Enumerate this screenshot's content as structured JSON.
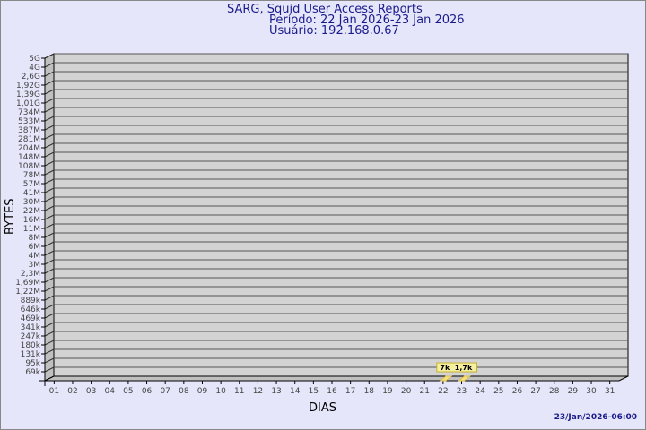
{
  "chart_data": {
    "type": "bar",
    "title": "SARG, Squid User Access Reports",
    "subtitle_period": "Período: 22 Jan 2026-23 Jan 2026",
    "subtitle_user": "Usuário: 192.168.0.67",
    "xlabel": "DIAS",
    "ylabel": "BYTES",
    "y_scale": "log",
    "y_ticks": [
      "5G",
      "4G",
      "2,6G",
      "1,92G",
      "1,39G",
      "1,01G",
      "734M",
      "533M",
      "387M",
      "281M",
      "204M",
      "148M",
      "108M",
      "78M",
      "57M",
      "41M",
      "30M",
      "22M",
      "16M",
      "11M",
      "8M",
      "6M",
      "4M",
      "3M",
      "2,3M",
      "1,69M",
      "1,22M",
      "889k",
      "646k",
      "469k",
      "341k",
      "247k",
      "180k",
      "131k",
      "95k",
      "69k"
    ],
    "categories": [
      "01",
      "02",
      "03",
      "04",
      "05",
      "06",
      "07",
      "08",
      "09",
      "10",
      "11",
      "12",
      "13",
      "14",
      "15",
      "16",
      "17",
      "18",
      "19",
      "20",
      "21",
      "22",
      "23",
      "24",
      "25",
      "26",
      "27",
      "28",
      "29",
      "30",
      "31"
    ],
    "points": [
      {
        "day": "22",
        "value": 7000,
        "label": "7k"
      },
      {
        "day": "23",
        "value": 1700,
        "label": "1,7k"
      }
    ],
    "grid": true,
    "colors": {
      "wall": "#d3d3d3",
      "side": "#c0c0c0",
      "label_bg": "#f5f0a0",
      "bar": "#f5e27a",
      "text": "#1a1a8c"
    }
  },
  "footer": {
    "timestamp": "23/Jan/2026-06:00"
  }
}
